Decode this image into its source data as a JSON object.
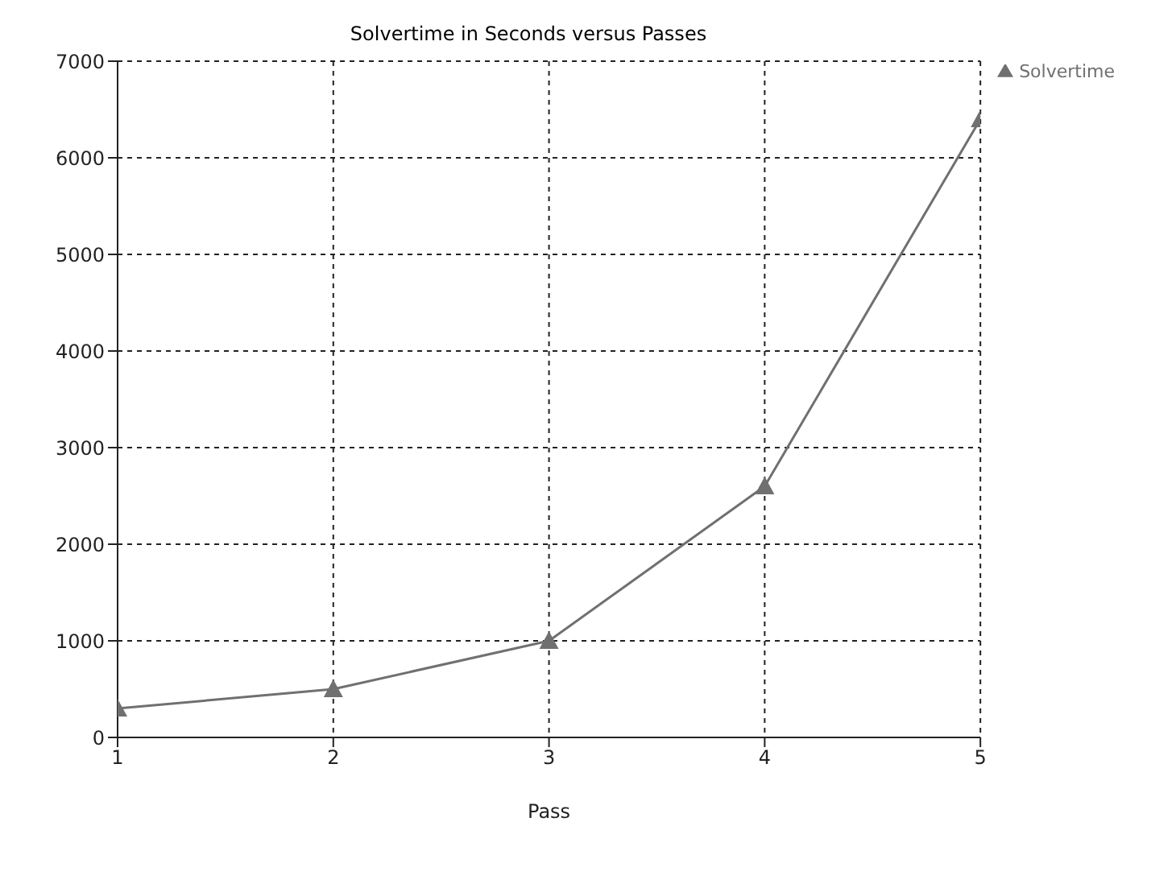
{
  "chart_data": {
    "type": "line",
    "title": "Solvertime in Seconds versus Passes",
    "xlabel": "Pass",
    "x": [
      1,
      2,
      3,
      4,
      5
    ],
    "series": [
      {
        "name": "Solvertime",
        "color": "#707070",
        "values": [
          300,
          500,
          1000,
          2600,
          6400
        ]
      }
    ],
    "xlim": [
      1,
      5
    ],
    "xticks": [
      1,
      2,
      3,
      4,
      5
    ],
    "ylim": [
      0,
      7000
    ],
    "yticks": [
      0,
      1000,
      2000,
      3000,
      4000,
      5000,
      6000,
      7000
    ],
    "grid": true,
    "legend": "top right",
    "marker": "triangle",
    "line_style": "solid"
  }
}
